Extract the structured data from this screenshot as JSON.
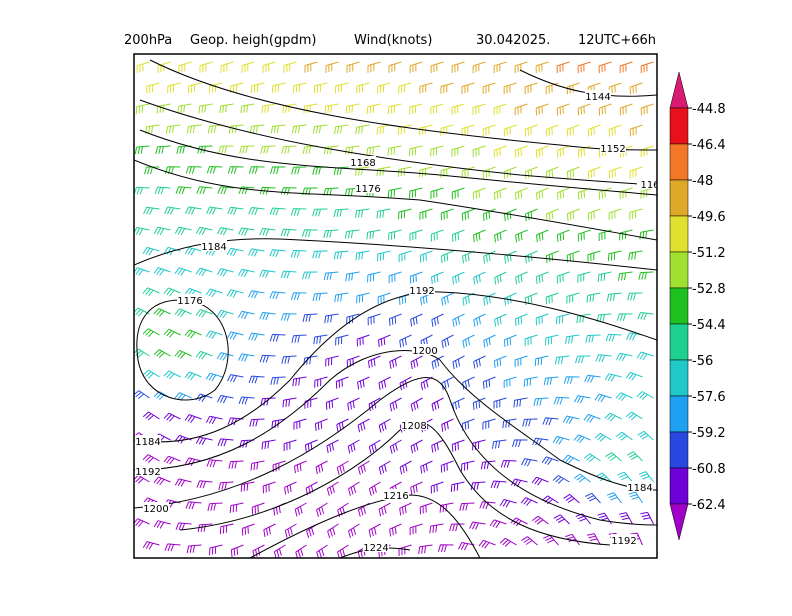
{
  "header": {
    "level": "200hPa",
    "field": "Geop. heigh(gpdm)",
    "wind": "Wind(knots)",
    "date": "30.042025.",
    "time": "12UTC+66h"
  },
  "contours": {
    "labels": [
      "1144",
      "1152",
      "116",
      "1168",
      "1176",
      "1184",
      "1176",
      "1192",
      "1200",
      "1208",
      "1216",
      "1224",
      "1184",
      "1192",
      "1200",
      "1184",
      "1192"
    ]
  },
  "colorbar": {
    "labels": [
      "-44.8",
      "-46.4",
      "-48",
      "-49.6",
      "-51.2",
      "-52.8",
      "-54.4",
      "-56",
      "-57.6",
      "-59.2",
      "-60.8",
      "-62.4"
    ],
    "colors": [
      "#d81b70",
      "#e8101a",
      "#f07828",
      "#e0a828",
      "#e0e030",
      "#a0e030",
      "#20c020",
      "#20d090",
      "#20c8c8",
      "#20a0f0",
      "#2848e0",
      "#7000d8",
      "#a000c8"
    ]
  }
}
